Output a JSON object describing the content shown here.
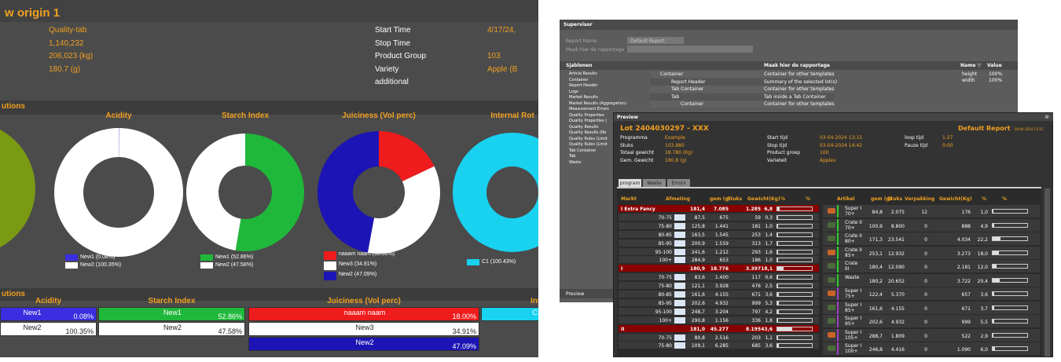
{
  "report": {
    "title": "w origin 1",
    "info_left": [
      "Quality-tab",
      "1,140,232",
      "206,023 (kg)",
      "180.7 (g)"
    ],
    "info_rows": [
      {
        "label": "Start Time",
        "value": "4/17/24,"
      },
      {
        "label": "Stop Time"
      },
      {
        "label": "Product Group",
        "value": "103"
      },
      {
        "label": "Variety",
        "value": "Apple (B"
      },
      {
        "label": "additional"
      }
    ],
    "section_charts": "utions",
    "section_table": "utions"
  },
  "chart_data": [
    {
      "type": "pie",
      "title": "Acidity",
      "categories": [
        "New1",
        "New2"
      ],
      "values": [
        0.08,
        100.35
      ],
      "value_labels": [
        "0.08%",
        "100.35%"
      ],
      "legend_labels": [
        "New1 (0.08%)",
        "New2 (100.35%)"
      ],
      "colors": [
        "#3a2ee0",
        "#ffffff"
      ]
    },
    {
      "type": "pie",
      "title": "Starch Index",
      "categories": [
        "New1",
        "New2"
      ],
      "values": [
        52.86,
        47.58
      ],
      "value_labels": [
        "52.86%",
        "47.58%"
      ],
      "legend_labels": [
        "New1 (52.86%)",
        "New2 (47.58%)"
      ],
      "colors": [
        "#1fb83a",
        "#ffffff"
      ]
    },
    {
      "type": "pie",
      "title": "Juiciness (Vol perc)",
      "categories": [
        "naaam naam",
        "New3",
        "New2"
      ],
      "values": [
        18.0,
        34.91,
        47.09
      ],
      "value_labels": [
        "18.00%",
        "34.91%",
        "47.09%"
      ],
      "legend_labels": [
        "naaam naam (18.00%)",
        "New3 (34.91%)",
        "New2 (47.09%)"
      ],
      "colors": [
        "#ee1c1c",
        "#ffffff",
        "#1c14b4"
      ]
    },
    {
      "type": "pie",
      "title": "Internal Rot",
      "categories": [
        "C1"
      ],
      "values": [
        100.43
      ],
      "value_labels": [
        "100.43%"
      ],
      "legend_labels": [
        "C1 (100.43%)"
      ],
      "colors": [
        "#18d2f0"
      ]
    }
  ],
  "supervisor": {
    "title": "Supervisor",
    "fields": [
      "Report Name",
      "Maak hier de rapportage"
    ],
    "field_value": "Default Report",
    "templates_title": "Sjablonen",
    "templates": [
      "Article Results",
      "Container",
      "Report Header",
      "Logo",
      "Market Results",
      "Market Results (Aggregation)",
      "Measurement Errors",
      "Quality Properties",
      "Quality Properties (",
      "Quality Results",
      "Quality Results (Re",
      "Quality Rules (Limit",
      "Quality Rules (Limit",
      "Tab Container",
      "Tab",
      "Waste"
    ],
    "grid_header": "Maak hier de rapportage",
    "grid_rows": [
      [
        "Container",
        "Container for other templates"
      ],
      [
        "Report Header",
        "Summary of the selected lot(s)"
      ],
      [
        "Tab Container",
        "Container for other templates"
      ],
      [
        "Tab",
        "Tab inside a Tab Container"
      ],
      [
        "Container",
        "Container for other templates"
      ]
    ],
    "props_header": [
      "Name ▽",
      "Value"
    ],
    "props_rows": [
      [
        "height",
        "100%"
      ],
      [
        "width",
        "100%"
      ]
    ],
    "footer": "Preview"
  },
  "preview": {
    "window_title": "Preview",
    "lot": "Lot 2404030297 - XXX",
    "report": "Default Report",
    "date": "04-04-2024 13:15",
    "info": [
      [
        "Programma",
        "Example"
      ],
      [
        "Stuks",
        "103.880"
      ],
      [
        "Totaal gewicht",
        "18.780 (Kg)"
      ],
      [
        "Gem. Gewicht",
        "180,8 (g)"
      ]
    ],
    "info2": [
      [
        "Start tijd",
        "03-04-2024 13:15"
      ],
      [
        "Stop tijd",
        "03-04-2024 14:42"
      ],
      [
        "Product groep",
        "100"
      ],
      [
        "Varieteit",
        "Apples"
      ]
    ],
    "info3": [
      [
        "loop tijd",
        "1:27"
      ],
      [
        "Pauze tijd",
        "0:00"
      ]
    ],
    "tabs": [
      "program",
      "Waste",
      "Errors"
    ],
    "market_headers": [
      "Markt",
      "Afmeting",
      "gem (g)",
      "Stuks",
      "Gewicht(Kg)",
      "%",
      "%"
    ],
    "market_rows": [
      [
        "I Extra Fancy",
        null,
        "181,4",
        "7.085",
        "1.285",
        "6,8"
      ],
      [
        null,
        "70-75",
        "87,5",
        "675",
        "59",
        "0,3"
      ],
      [
        null,
        "75-80",
        "125,8",
        "1.441",
        "181",
        "1,0"
      ],
      [
        null,
        "80-85",
        "163,5",
        "1.545",
        "253",
        "1,4"
      ],
      [
        null,
        "85-95",
        "200,9",
        "1.559",
        "313",
        "1,7"
      ],
      [
        null,
        "95-100",
        "241,6",
        "1.212",
        "293",
        "1,6"
      ],
      [
        null,
        "100+",
        "284,9",
        "653",
        "186",
        "1,0"
      ],
      [
        "I",
        null,
        "180,9",
        "18.776",
        "3.397",
        "18,1"
      ],
      [
        null,
        "70-75",
        "83,6",
        "1.400",
        "117",
        "0,6"
      ],
      [
        null,
        "75-80",
        "121,1",
        "3.928",
        "476",
        "2,5"
      ],
      [
        null,
        "80-85",
        "161,6",
        "4.155",
        "671",
        "3,6"
      ],
      [
        null,
        "85-95",
        "202,6",
        "4.932",
        "999",
        "5,3"
      ],
      [
        null,
        "95-100",
        "248,7",
        "3.204",
        "797",
        "4,2"
      ],
      [
        null,
        "100+",
        "290,8",
        "1.156",
        "336",
        "1,8"
      ],
      [
        "II",
        null,
        "181,0",
        "45.277",
        "8.195",
        "43,6"
      ],
      [
        null,
        "70-75",
        "80,8",
        "2.516",
        "203",
        "1,1"
      ],
      [
        null,
        "75-80",
        "109,1",
        "6.285",
        "685",
        "3,6"
      ]
    ],
    "article_headers": [
      "Artikel",
      "gem (g)",
      "Stuks",
      "Verpakking",
      "Gewicht(Kg)",
      "%",
      "%"
    ],
    "article_rows": [
      [
        "Super I 70+",
        "84,8",
        "2.075",
        "12",
        "176",
        "1,0"
      ],
      [
        "Crate II 70+",
        "100,9",
        "8.800",
        "0",
        "888",
        "4,9"
      ],
      [
        "Crate II 80+",
        "171,3",
        "23.541",
        "0",
        "4.034",
        "22,2"
      ],
      [
        "Crate II 85+",
        "253,1",
        "12.932",
        "0",
        "3.273",
        "18,0"
      ],
      [
        "Crate III",
        "180,4",
        "12.090",
        "0",
        "2.181",
        "12,0"
      ],
      [
        "Waste",
        "180,2",
        "20.652",
        "0",
        "3.722",
        "20,4"
      ],
      [
        "Super I 75+",
        "122,4",
        "5.370",
        "0",
        "657",
        "3,6"
      ],
      [
        "Super I 85+",
        "161,6",
        "4.155",
        "0",
        "671",
        "3,7"
      ],
      [
        "Super I 95+",
        "202,6",
        "4.932",
        "0",
        "999",
        "5,5"
      ],
      [
        "Super I 105+",
        "288,7",
        "1.809",
        "0",
        "522",
        "2,9"
      ],
      [
        "Super I 100+",
        "246,8",
        "4.416",
        "0",
        "1.090",
        "6,0"
      ]
    ]
  }
}
